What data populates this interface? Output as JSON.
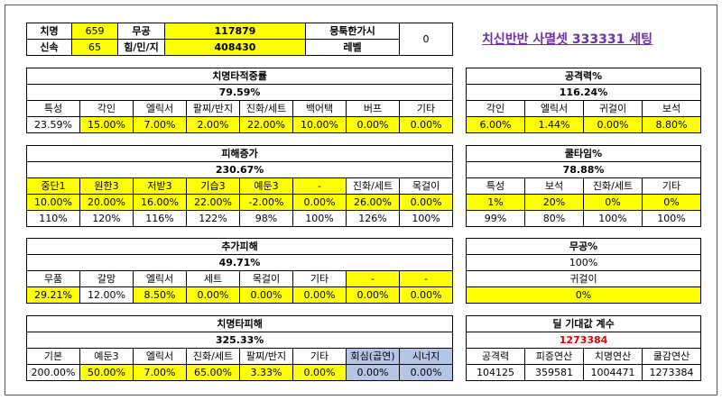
{
  "top": {
    "labels": [
      "치명",
      "신속",
      "무공",
      "힘/민/지",
      "뭉툭한가시",
      "레벨"
    ],
    "values": {
      "crit": "659",
      "swift": "65",
      "mugong": "117879",
      "str": "408430",
      "level": "0"
    },
    "setting_title": "치신반반 사멸셋 333331 세팅"
  },
  "crit_gem": {
    "title": "치명타적중률",
    "total": "79.59%",
    "headers": [
      "특성",
      "각인",
      "엘릭서",
      "팔찌/반지",
      "진화/세트",
      "백어택",
      "버프",
      "기타"
    ],
    "values": [
      "23.59%",
      "15.00%",
      "7.00%",
      "2.00%",
      "22.00%",
      "10.00%",
      "0.00%",
      "0.00%"
    ]
  },
  "attack_pct": {
    "title": "공격력%",
    "total": "116.24%",
    "headers": [
      "각인",
      "엘릭서",
      "귀걸이",
      "보석"
    ],
    "values": [
      "6.00%",
      "1.44%",
      "0.00%",
      "8.80%"
    ]
  },
  "damage_up": {
    "title": "피해증가",
    "total": "230.67%",
    "headers": [
      "중단1",
      "원한3",
      "저받3",
      "기습3",
      "예둔3",
      "-",
      "진화/세트",
      "목걸이"
    ],
    "values": [
      "10.00%",
      "20.00%",
      "16.00%",
      "22.00%",
      "-2.00%",
      "0.00%",
      "26.00%",
      "0.00%"
    ],
    "mults": [
      "110%",
      "120%",
      "116%",
      "122%",
      "98%",
      "100%",
      "126%",
      "100%"
    ]
  },
  "cooldown": {
    "title": "쿨타임%",
    "total": "78.88%",
    "headers": [
      "특성",
      "보석",
      "진화/세트",
      "기타"
    ],
    "values": [
      "1%",
      "20%",
      "0%",
      "0%"
    ],
    "mults": [
      "99%",
      "80%",
      "100%",
      "100%"
    ]
  },
  "extra_damage": {
    "title": "추가피해",
    "total": "49.71%",
    "headers": [
      "무품",
      "갈망",
      "엘릭서",
      "세트",
      "목걸이",
      "기타",
      "-",
      "-"
    ],
    "values": [
      "29.21%",
      "12.00%",
      "8.50%",
      "0.00%",
      "0.00%",
      "0.00%",
      "0.00%",
      "0.00%"
    ]
  },
  "mugong_pct": {
    "title": "무공%",
    "total": "100%",
    "headers": [
      "귀걸이"
    ],
    "values": [
      "0%"
    ]
  },
  "crit_damage": {
    "title": "치명타피해",
    "total": "325.33%",
    "headers": [
      "기본",
      "예둔3",
      "엘릭서",
      "진화/세트",
      "팔찌/반지",
      "기타",
      "회심(곱연)",
      "시너지"
    ],
    "values": [
      "200.00%",
      "50.00%",
      "7.00%",
      "65.00%",
      "3.33%",
      "0.00%",
      "0.00%",
      "0.00%"
    ]
  },
  "deal_expect": {
    "title": "딜 기대값 계수",
    "total": "1273384",
    "headers": [
      "공격력",
      "피증연산",
      "치명연산",
      "쿨감연산"
    ],
    "values": [
      "104125",
      "359581",
      "1004471",
      "1273384"
    ]
  }
}
